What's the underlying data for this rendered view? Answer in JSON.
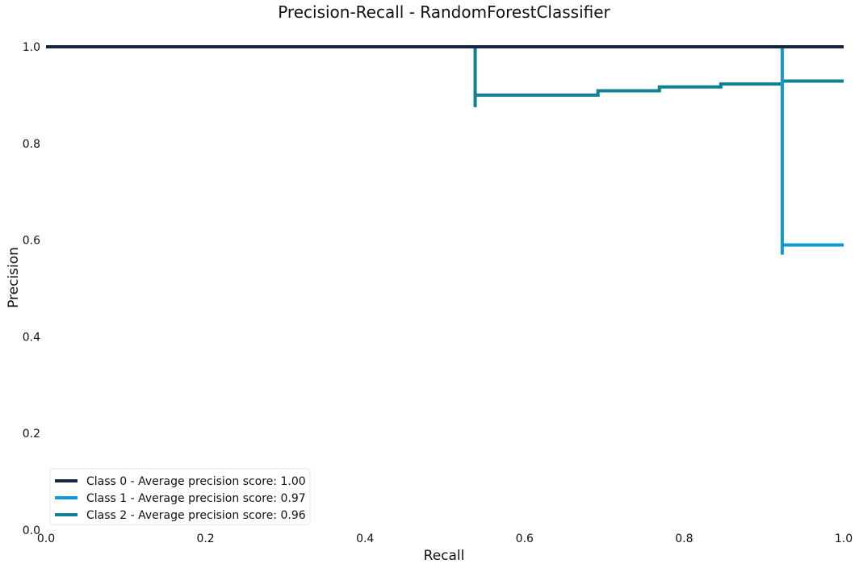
{
  "chart_data": {
    "type": "line",
    "title": "Precision-Recall - RandomForestClassifier",
    "xlabel": "Recall",
    "ylabel": "Precision",
    "xlim": [
      0.0,
      1.0
    ],
    "ylim": [
      0.0,
      1.0
    ],
    "x_ticks": [
      "0.0",
      "0.2",
      "0.4",
      "0.6",
      "0.8",
      "1.0"
    ],
    "y_ticks": [
      "0.0",
      "0.2",
      "0.4",
      "0.6",
      "0.8",
      "1.0"
    ],
    "grid": false,
    "legend": {
      "placement": "bottom-left"
    },
    "series": [
      {
        "name": "Class 0 - Average precision score: 1.00",
        "color": "#142740",
        "points": [
          [
            1.0,
            1.0
          ],
          [
            0.0,
            1.0
          ]
        ]
      },
      {
        "name": "Class 1 - Average precision score: 0.97",
        "color": "#1098d8",
        "points": [
          [
            1.0,
            0.59
          ],
          [
            0.923,
            0.59
          ],
          [
            0.923,
            0.57
          ],
          [
            0.923,
            1.0
          ],
          [
            0.0,
            1.0
          ]
        ]
      },
      {
        "name": "Class 2 - Average precision score: 0.96",
        "color": "#0f8096",
        "points": [
          [
            1.0,
            0.929
          ],
          [
            0.923,
            0.929
          ],
          [
            0.923,
            0.923
          ],
          [
            0.846,
            0.923
          ],
          [
            0.846,
            0.917
          ],
          [
            0.769,
            0.917
          ],
          [
            0.769,
            0.909
          ],
          [
            0.692,
            0.909
          ],
          [
            0.692,
            0.9
          ],
          [
            0.538,
            0.9
          ],
          [
            0.538,
            0.875
          ],
          [
            0.538,
            1.0
          ],
          [
            0.0,
            1.0
          ]
        ]
      }
    ]
  }
}
